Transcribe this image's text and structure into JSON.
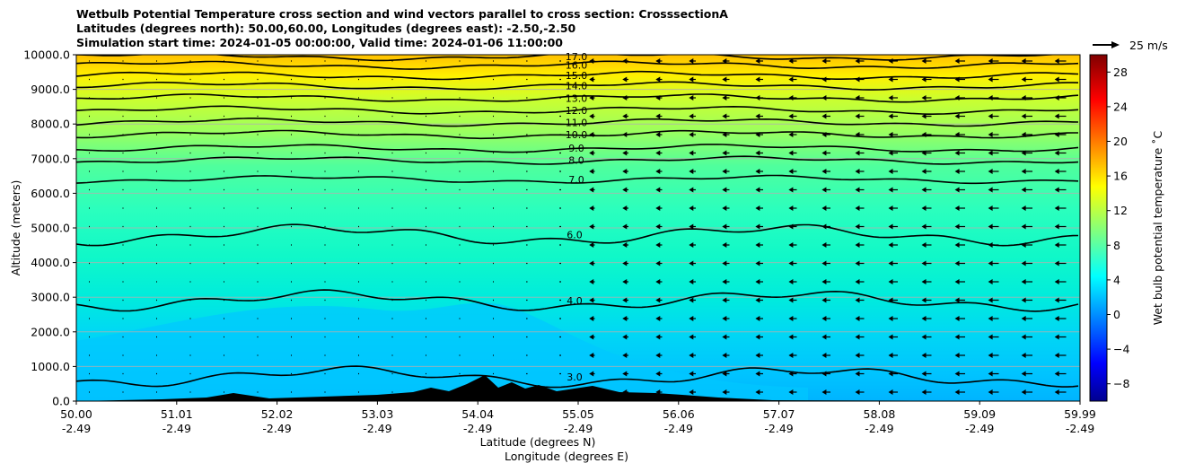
{
  "chart_data": {
    "type": "heatmap",
    "title_lines": [
      "Wetbulb Potential Temperature cross section and wind vectors parallel to cross section: CrosssectionA",
      "Latitudes (degrees north): 50.00,60.00, Longitudes (degrees east): -2.50,-2.50",
      "Simulation start time: 2024-01-05 00:00:00, Valid time: 2024-01-06 11:00:00"
    ],
    "xlabel_lines": [
      "Latitude (degrees N)",
      "Longitude (degrees E)"
    ],
    "ylabel": "Altitude (meters)",
    "x_ticks": [
      {
        "lat": "50.00",
        "lon": "-2.49"
      },
      {
        "lat": "51.01",
        "lon": "-2.49"
      },
      {
        "lat": "52.02",
        "lon": "-2.49"
      },
      {
        "lat": "53.03",
        "lon": "-2.49"
      },
      {
        "lat": "54.04",
        "lon": "-2.49"
      },
      {
        "lat": "55.05",
        "lon": "-2.49"
      },
      {
        "lat": "56.06",
        "lon": "-2.49"
      },
      {
        "lat": "57.07",
        "lon": "-2.49"
      },
      {
        "lat": "58.08",
        "lon": "-2.49"
      },
      {
        "lat": "59.09",
        "lon": "-2.49"
      },
      {
        "lat": "59.99",
        "lon": "-2.49"
      }
    ],
    "xlim": [
      50.0,
      59.99
    ],
    "y_ticks": [
      "0.0",
      "1000.0",
      "2000.0",
      "3000.0",
      "4000.0",
      "5000.0",
      "6000.0",
      "7000.0",
      "8000.0",
      "9000.0",
      "10000.0"
    ],
    "ylim": [
      0,
      10000
    ],
    "grid": "horizontal",
    "colorbar": {
      "label": "Wet bulb potential temperature ˚C",
      "colormap": "jet",
      "range": [
        -10,
        30
      ],
      "ticks": [
        "−8",
        "−4",
        "0",
        "4",
        "8",
        "12",
        "16",
        "20",
        "24",
        "28"
      ]
    },
    "wind_key": {
      "label": "25 m/s",
      "value": 25
    },
    "contour_levels": [
      {
        "label": "3.0",
        "value": 3.0,
        "altitude": 700
      },
      {
        "label": "4.0",
        "value": 4.0,
        "altitude": 2900
      },
      {
        "label": "6.0",
        "value": 6.0,
        "altitude": 4800
      },
      {
        "label": "7.0",
        "value": 7.0,
        "altitude": 6400
      },
      {
        "label": "8.0",
        "value": 8.0,
        "altitude": 6950
      },
      {
        "label": "9.0",
        "value": 9.0,
        "altitude": 7300
      },
      {
        "label": "10.0",
        "value": 10.0,
        "altitude": 7700
      },
      {
        "label": "11.0",
        "value": 11.0,
        "altitude": 8050
      },
      {
        "label": "12.0",
        "value": 12.0,
        "altitude": 8400
      },
      {
        "label": "13.0",
        "value": 13.0,
        "altitude": 8750
      },
      {
        "label": "14.0",
        "value": 14.0,
        "altitude": 9100
      },
      {
        "label": "15.0",
        "value": 15.0,
        "altitude": 9400
      },
      {
        "label": "16.0",
        "value": 16.0,
        "altitude": 9700
      },
      {
        "label": "17.0",
        "value": 17.0,
        "altitude": 9950
      }
    ],
    "series": [
      {
        "values": [
          {
            "alt": 0,
            "t": 4.0
          },
          {
            "alt": 1000,
            "t": 3.0
          },
          {
            "alt": 2000,
            "t": 3.4
          },
          {
            "alt": 3000,
            "t": 4.0
          },
          {
            "alt": 4000,
            "t": 5.0
          },
          {
            "alt": 5000,
            "t": 6.0
          },
          {
            "alt": 6000,
            "t": 6.6
          },
          {
            "alt": 7000,
            "t": 8.0
          },
          {
            "alt": 8000,
            "t": 11.0
          },
          {
            "alt": 9000,
            "t": 14.0
          },
          {
            "alt": 10000,
            "t": 18.0
          }
        ]
      }
    ]
  }
}
